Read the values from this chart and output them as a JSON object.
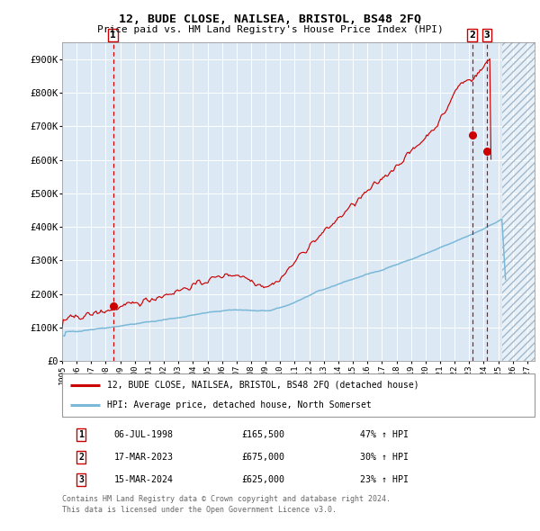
{
  "title": "12, BUDE CLOSE, NAILSEA, BRISTOL, BS48 2FQ",
  "subtitle": "Price paid vs. HM Land Registry's House Price Index (HPI)",
  "legend_line1": "12, BUDE CLOSE, NAILSEA, BRISTOL, BS48 2FQ (detached house)",
  "legend_line2": "HPI: Average price, detached house, North Somerset",
  "footer1": "Contains HM Land Registry data © Crown copyright and database right 2024.",
  "footer2": "This data is licensed under the Open Government Licence v3.0.",
  "xlim": [
    1995.0,
    2027.5
  ],
  "ylim": [
    0,
    950000
  ],
  "yticks": [
    0,
    100000,
    200000,
    300000,
    400000,
    500000,
    600000,
    700000,
    800000,
    900000
  ],
  "ytick_labels": [
    "£0",
    "£100K",
    "£200K",
    "£300K",
    "£400K",
    "£500K",
    "£600K",
    "£700K",
    "£800K",
    "£900K"
  ],
  "xticks": [
    1995,
    1996,
    1997,
    1998,
    1999,
    2000,
    2001,
    2002,
    2003,
    2004,
    2005,
    2006,
    2007,
    2008,
    2009,
    2010,
    2011,
    2012,
    2013,
    2014,
    2015,
    2016,
    2017,
    2018,
    2019,
    2020,
    2021,
    2022,
    2023,
    2024,
    2025,
    2026,
    2027
  ],
  "hpi_color": "#7ab8d8",
  "price_color": "#cc0000",
  "bg_color": "#dce9f5",
  "grid_color": "#ffffff",
  "future_start": 2025.25,
  "t1_x": 1998.51,
  "t1_y": 165500,
  "t2_x": 2023.21,
  "t2_y": 675000,
  "t3_x": 2024.21,
  "t3_y": 625000,
  "rows": [
    [
      "1",
      "06-JUL-1998",
      "£165,500",
      "47% ↑ HPI"
    ],
    [
      "2",
      "17-MAR-2023",
      "£675,000",
      "30% ↑ HPI"
    ],
    [
      "3",
      "15-MAR-2024",
      "£625,000",
      "23% ↑ HPI"
    ]
  ]
}
